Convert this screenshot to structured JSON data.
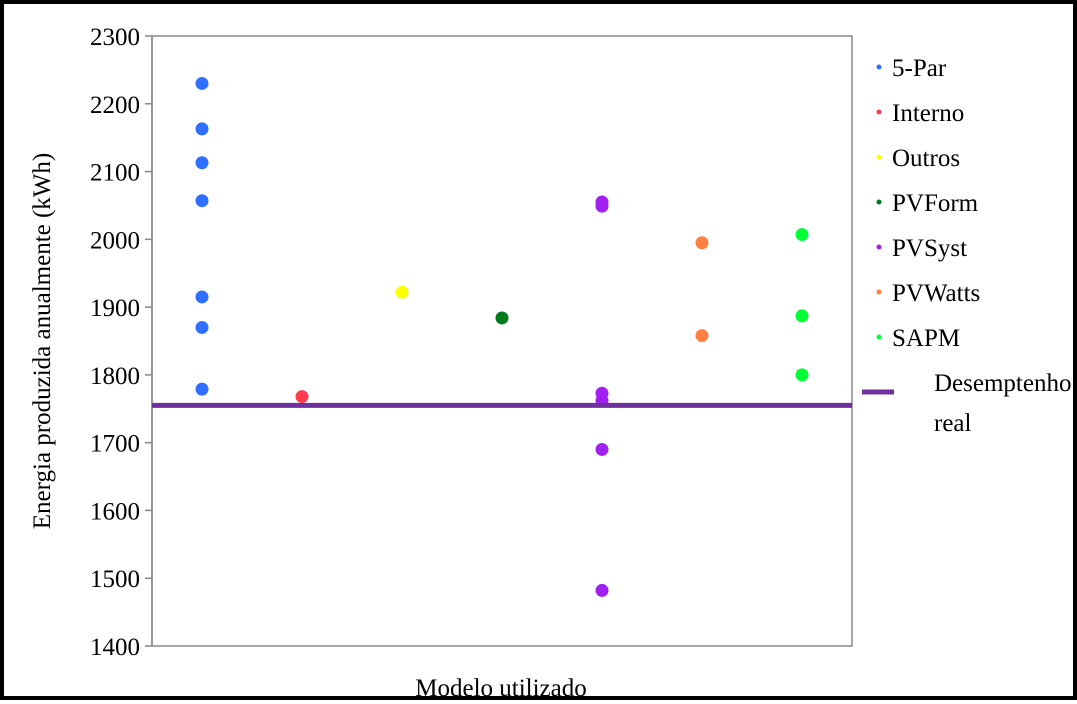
{
  "chart_data": {
    "type": "scatter",
    "title": "",
    "xlabel": "Modelo utilizado",
    "ylabel": "Energia produzida anualmente (kWh)",
    "ylim": [
      1400,
      2300
    ],
    "yticks": [
      "1400",
      "1500",
      "1600",
      "1700",
      "1800",
      "1900",
      "2000",
      "2100",
      "2200",
      "2300"
    ],
    "x_ticks_labeled": false,
    "grid": false,
    "legend_position": "right",
    "series": [
      {
        "name": "5-Par",
        "color": "#2F6FFF",
        "x": 1,
        "values": [
          2230,
          2163,
          2113,
          2057,
          1915,
          1870,
          1779
        ]
      },
      {
        "name": "Interno",
        "color": "#FF3B4E",
        "x": 2,
        "values": [
          1768
        ]
      },
      {
        "name": "Outros",
        "color": "#FFFF00",
        "x": 3,
        "values": [
          1922
        ]
      },
      {
        "name": "PVForm",
        "color": "#007A1F",
        "x": 4,
        "values": [
          1884
        ]
      },
      {
        "name": "PVSyst",
        "color": "#A020F0",
        "x": 5,
        "values": [
          2055,
          2049,
          1773,
          1762,
          1690,
          1482
        ]
      },
      {
        "name": "PVWatts",
        "color": "#FF8040",
        "x": 6,
        "values": [
          1995,
          1858
        ]
      },
      {
        "name": "SAPM",
        "color": "#00FF33",
        "x": 7,
        "values": [
          2007,
          1887,
          1800
        ]
      }
    ],
    "reference_line": {
      "label_line1": "Desemptenho",
      "label_line2": "real",
      "value": 1755,
      "color": "#7030A0"
    }
  }
}
